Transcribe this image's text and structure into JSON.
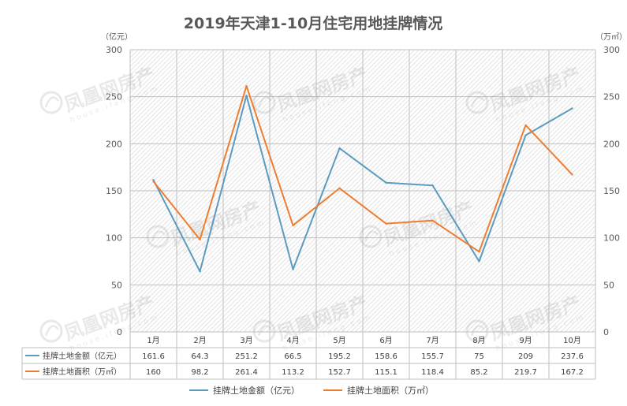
{
  "chart_data": {
    "type": "line",
    "title": "2019年天津1-10月住宅用地挂牌情况",
    "y_left_unit": "（亿元）",
    "y_right_unit": "（万㎡）",
    "ylim": [
      0,
      300
    ],
    "y_ticks": [
      0,
      50,
      100,
      150,
      200,
      250,
      300
    ],
    "categories": [
      "1月",
      "2月",
      "3月",
      "4月",
      "5月",
      "6月",
      "7月",
      "8月",
      "9月",
      "10月"
    ],
    "series": [
      {
        "name": "挂牌土地金额（亿元）",
        "color": "#5b9bbf",
        "values": [
          161.6,
          64.3,
          251.2,
          66.5,
          195.2,
          158.6,
          155.7,
          75,
          209,
          237.6
        ],
        "labels": [
          "161.6",
          "64.3",
          "251.2",
          "66.5",
          "195.2",
          "158.6",
          "155.7",
          "75",
          "209",
          "237.6"
        ]
      },
      {
        "name": "挂牌土地面积（万㎡）",
        "color": "#ed7d31",
        "values": [
          160,
          98.2,
          261.4,
          113.2,
          152.7,
          115.1,
          118.4,
          85.2,
          219.7,
          167.2
        ],
        "labels": [
          "160",
          "98.2",
          "261.4",
          "113.2",
          "152.7",
          "115.1",
          "118.4",
          "85.2",
          "219.7",
          "167.2"
        ]
      }
    ],
    "grid": true,
    "legend_position": "bottom",
    "data_table": true
  },
  "watermark": {
    "text": "凤凰网房产",
    "subtext": "house.ifeng.com"
  }
}
